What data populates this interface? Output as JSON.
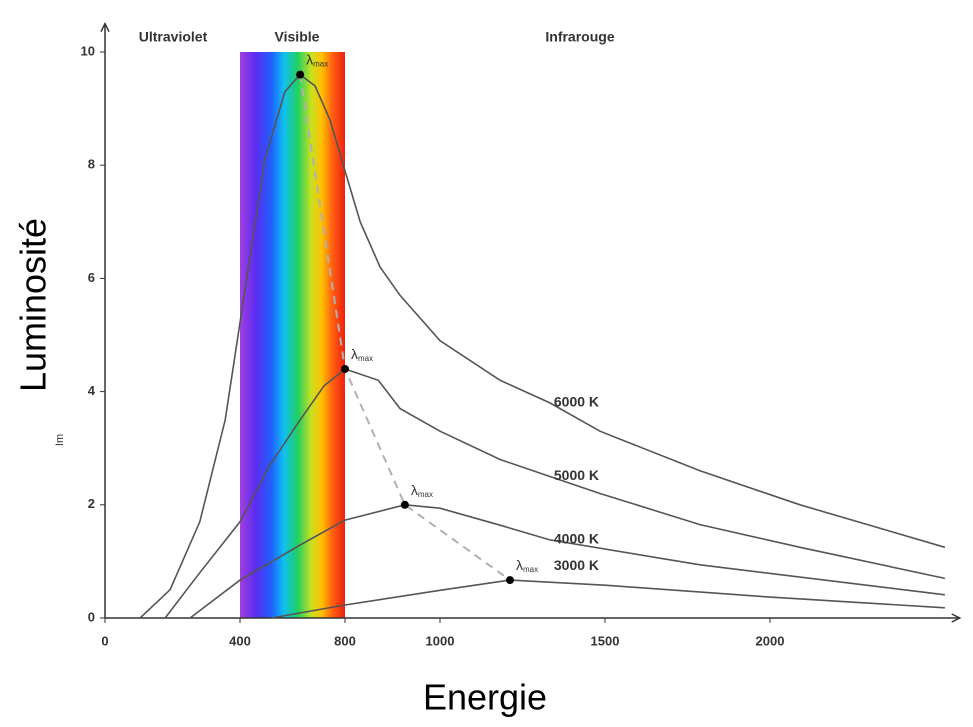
{
  "chart_data": {
    "type": "line",
    "x_label": "Energie",
    "y_label": "Luminosité",
    "y_unit": "Im",
    "regions": [
      "Ultraviolet",
      "Visible",
      "Infrarouge"
    ],
    "visible_band": [
      400,
      800
    ],
    "xlim": [
      0,
      2575
    ],
    "ylim": [
      0,
      10.5
    ],
    "xticks": [
      0,
      400,
      800,
      1000,
      1500,
      2000
    ],
    "yticks": [
      0,
      2,
      4,
      6,
      8,
      10
    ],
    "series": [
      {
        "name": "6000 K",
        "color": "#555555",
        "x": [
          104,
          193,
          281,
          356,
          419,
          495,
          571,
          629,
          686,
          743,
          800,
          832,
          874,
          916,
          1000,
          1182,
          1333,
          1485,
          1788,
          2091,
          2530
        ],
        "values": [
          0,
          0.5,
          1.7,
          3.5,
          5.8,
          8.1,
          9.3,
          9.6,
          9.4,
          8.8,
          7.9,
          7.0,
          6.2,
          5.7,
          4.9,
          4.2,
          3.8,
          3.3,
          2.6,
          2.0,
          1.25
        ]
      },
      {
        "name": "5000 K",
        "color": "#555555",
        "x": [
          178,
          281,
          400,
          514,
          629,
          720,
          800,
          870,
          916,
          1000,
          1182,
          1333,
          1485,
          1788,
          2091,
          2530
        ],
        "values": [
          0,
          0.8,
          1.7,
          2.7,
          3.5,
          4.1,
          4.4,
          4.2,
          3.7,
          3.3,
          2.8,
          2.5,
          2.2,
          1.65,
          1.25,
          0.7
        ]
      },
      {
        "name": "4000 K",
        "color": "#555555",
        "x": [
          252,
          400,
          629,
          800,
          926,
          1000,
          1182,
          1333,
          1788,
          2530
        ],
        "values": [
          0,
          0.67,
          1.29,
          1.73,
          2.0,
          1.94,
          1.64,
          1.38,
          0.94,
          0.41
        ]
      },
      {
        "name": "3000 K",
        "color": "#555555",
        "x": [
          520,
          800,
          1000,
          1212,
          1500,
          2000,
          2530
        ],
        "values": [
          0,
          0.23,
          0.49,
          0.67,
          0.58,
          0.37,
          0.18
        ]
      }
    ],
    "peaks": {
      "x": [
        629,
        800,
        926,
        1212
      ],
      "values": [
        9.6,
        4.4,
        2.0,
        0.67
      ]
    },
    "peak_label_symbol": "λ",
    "peak_label_sub": "max"
  }
}
